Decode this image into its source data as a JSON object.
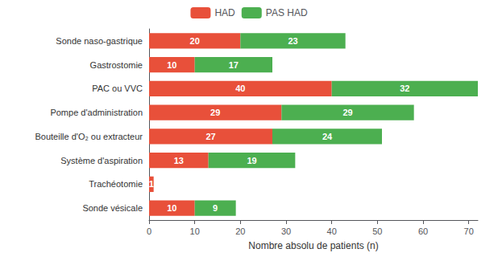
{
  "chart_data": {
    "type": "bar",
    "orientation": "horizontal",
    "stacked": true,
    "categories": [
      "Sonde naso-gastrique",
      "Gastrostomie",
      "PAC ou VVC",
      "Pompe d'administration",
      "Bouteille d'O₂ ou extracteur",
      "Système d'aspiration",
      "Trachéotomie",
      "Sonde vésicale"
    ],
    "series": [
      {
        "name": "HAD",
        "color": "#E8503A",
        "values": [
          20,
          10,
          40,
          29,
          27,
          13,
          1,
          10
        ]
      },
      {
        "name": "PAS HAD",
        "color": "#4CAF50",
        "values": [
          23,
          17,
          32,
          29,
          24,
          19,
          0,
          9
        ]
      }
    ],
    "xlabel": "Nombre absolu de patients (n)",
    "xlim": [
      0,
      72
    ],
    "xticks": [
      0,
      10,
      20,
      30,
      40,
      50,
      60,
      70
    ],
    "data_labels": true,
    "grid": false,
    "legend": "top"
  }
}
